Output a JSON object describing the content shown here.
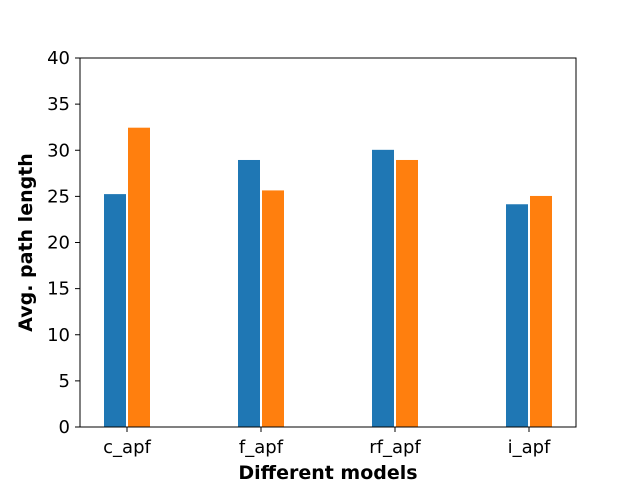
{
  "chart_data": {
    "type": "bar",
    "title": "",
    "xlabel": "Different models",
    "ylabel": "Avg. path length",
    "categories": [
      "c_apf",
      "f_apf",
      "rf_apf",
      "i_apf"
    ],
    "series": [
      {
        "values": [
          25.3,
          29.0,
          30.1,
          24.2
        ],
        "color": "#1f77b4"
      },
      {
        "values": [
          32.5,
          25.7,
          29.0,
          25.1
        ],
        "color": "#ff7f0e"
      }
    ],
    "ylim": [
      0,
      40
    ],
    "yticks": [
      0,
      5,
      10,
      15,
      20,
      25,
      30,
      35,
      40
    ],
    "grid": false,
    "legend": "none"
  }
}
